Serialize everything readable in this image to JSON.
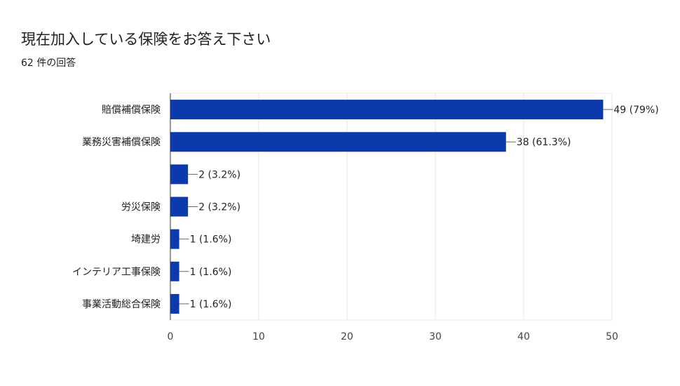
{
  "title": "現在加入している保険をお答え下さい",
  "subtitle": "62 件の回答",
  "chart_data": {
    "type": "bar",
    "orientation": "horizontal",
    "categories": [
      "賠償補償保険",
      "業務災害補償保険",
      "",
      "労災保険",
      "埼建労",
      "インテリア工事保険",
      "事業活動総合保険"
    ],
    "values": [
      49,
      38,
      2,
      2,
      1,
      1,
      1
    ],
    "value_labels": [
      "49 (79%)",
      "38 (61.3%)",
      "2 (3.2%)",
      "2 (3.2%)",
      "1 (1.6%)",
      "1 (1.6%)",
      "1 (1.6%)"
    ],
    "xlim": [
      0,
      50
    ],
    "xticks": [
      0,
      10,
      20,
      30,
      40,
      50
    ],
    "grid": true,
    "bar_color": "#0b3aad"
  }
}
